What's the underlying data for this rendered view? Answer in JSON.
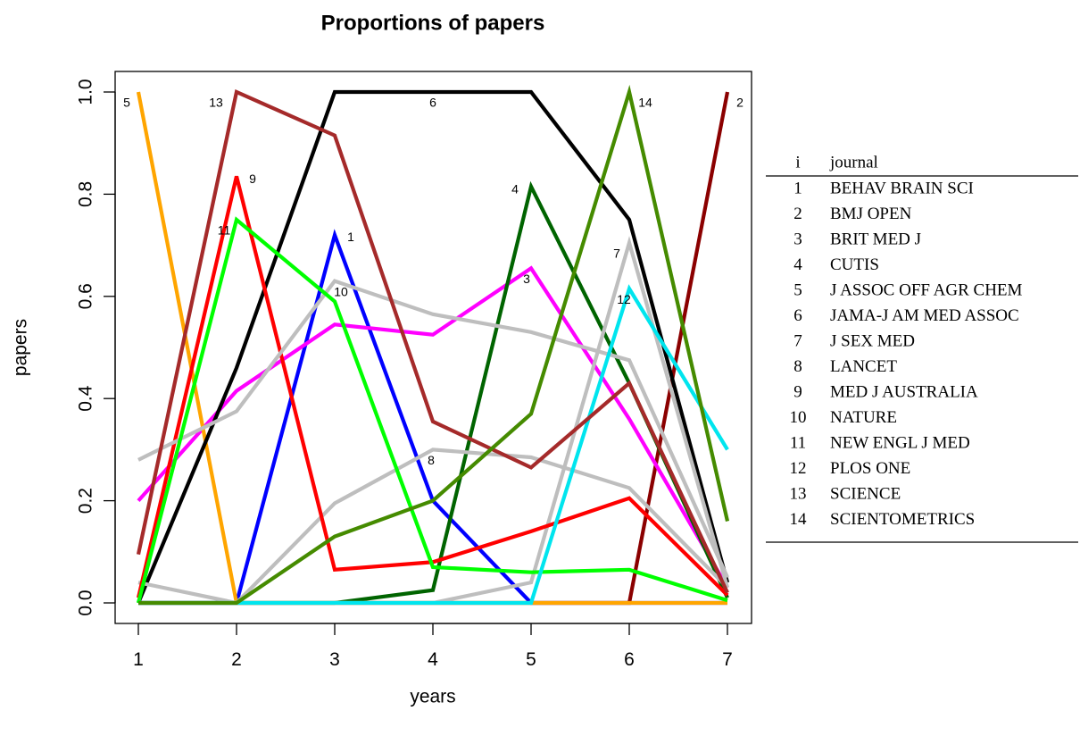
{
  "chart_data": {
    "type": "line",
    "title": "Proportions of papers",
    "xlabel": "years",
    "ylabel": "papers",
    "xlim": [
      1,
      7
    ],
    "ylim": [
      0,
      1
    ],
    "x_ticks": [
      "1",
      "2",
      "3",
      "4",
      "5",
      "6",
      "7"
    ],
    "y_ticks": [
      "0.0",
      "0.2",
      "0.4",
      "0.6",
      "0.8",
      "1.0"
    ],
    "x": [
      1,
      2,
      3,
      4,
      5,
      6,
      7
    ],
    "series": [
      {
        "name": "1",
        "color": "#0000ff",
        "values": [
          0,
          0,
          0.72,
          0.2,
          0,
          0,
          0
        ],
        "label_point": 3
      },
      {
        "name": "2",
        "color": "#8b0000",
        "values": [
          0,
          0,
          0,
          0,
          0,
          0,
          1.0
        ],
        "label_point": 7
      },
      {
        "name": "3",
        "color": "#ff00ff",
        "values": [
          0.2,
          0.415,
          0.545,
          0.525,
          0.655,
          0.36,
          0.03
        ],
        "label_point": 5
      },
      {
        "name": "4",
        "color": "#006400",
        "values": [
          0,
          0,
          0,
          0.025,
          0.815,
          0.43,
          0.01
        ],
        "label_point": 5
      },
      {
        "name": "5",
        "color": "#ffa500",
        "values": [
          1.0,
          0,
          0,
          0,
          0,
          0,
          0
        ],
        "label_point": 1
      },
      {
        "name": "6",
        "color": "#000000",
        "values": [
          0,
          0.46,
          1.0,
          1.0,
          1.0,
          0.75,
          0.04
        ],
        "label_point": 4
      },
      {
        "name": "7",
        "color": "#bebebe",
        "values": [
          0.04,
          0,
          0,
          0,
          0.04,
          0.705,
          0.03
        ],
        "label_point": 6
      },
      {
        "name": "8",
        "color": "#bebebe",
        "values": [
          0,
          0,
          0.195,
          0.3,
          0.285,
          0.225,
          0.03
        ],
        "label_point": 4
      },
      {
        "name": "9",
        "color": "#ff0000",
        "values": [
          0.01,
          0.835,
          0.065,
          0.08,
          0.14,
          0.205,
          0.015
        ],
        "label_point": 2
      },
      {
        "name": "10",
        "color": "#bebebe",
        "values": [
          0.28,
          0.375,
          0.63,
          0.565,
          0.53,
          0.475,
          0.05
        ],
        "label_point": 3
      },
      {
        "name": "11",
        "color": "#00ff00",
        "values": [
          0,
          0.75,
          0.59,
          0.07,
          0.06,
          0.065,
          0.005
        ],
        "label_point": 2
      },
      {
        "name": "12",
        "color": "#00e5ee",
        "values": [
          0,
          0,
          0,
          0,
          0,
          0.615,
          0.3
        ],
        "label_point": 6
      },
      {
        "name": "13",
        "color": "#a52a2a",
        "values": [
          0.095,
          1.0,
          0.915,
          0.355,
          0.265,
          0.43,
          0.02
        ],
        "label_point": 2
      },
      {
        "name": "14",
        "color": "#458b00",
        "values": [
          0,
          0,
          0.13,
          0.2,
          0.37,
          1.0,
          0.16
        ],
        "label_point": 6
      }
    ],
    "legend_table": {
      "headers": [
        "i",
        "journal"
      ],
      "rows": [
        {
          "i": "1",
          "journal": "BEHAV BRAIN SCI"
        },
        {
          "i": "2",
          "journal": "BMJ OPEN"
        },
        {
          "i": "3",
          "journal": "BRIT MED J"
        },
        {
          "i": "4",
          "journal": "CUTIS"
        },
        {
          "i": "5",
          "journal": "J ASSOC OFF AGR CHEM"
        },
        {
          "i": "6",
          "journal": "JAMA-J AM MED ASSOC"
        },
        {
          "i": "7",
          "journal": "J SEX MED"
        },
        {
          "i": "8",
          "journal": "LANCET"
        },
        {
          "i": "9",
          "journal": "MED J AUSTRALIA"
        },
        {
          "i": "10",
          "journal": "NATURE"
        },
        {
          "i": "11",
          "journal": "NEW ENGL J MED"
        },
        {
          "i": "12",
          "journal": "PLOS ONE"
        },
        {
          "i": "13",
          "journal": "SCIENCE"
        },
        {
          "i": "14",
          "journal": "SCIENTOMETRICS"
        }
      ]
    }
  }
}
